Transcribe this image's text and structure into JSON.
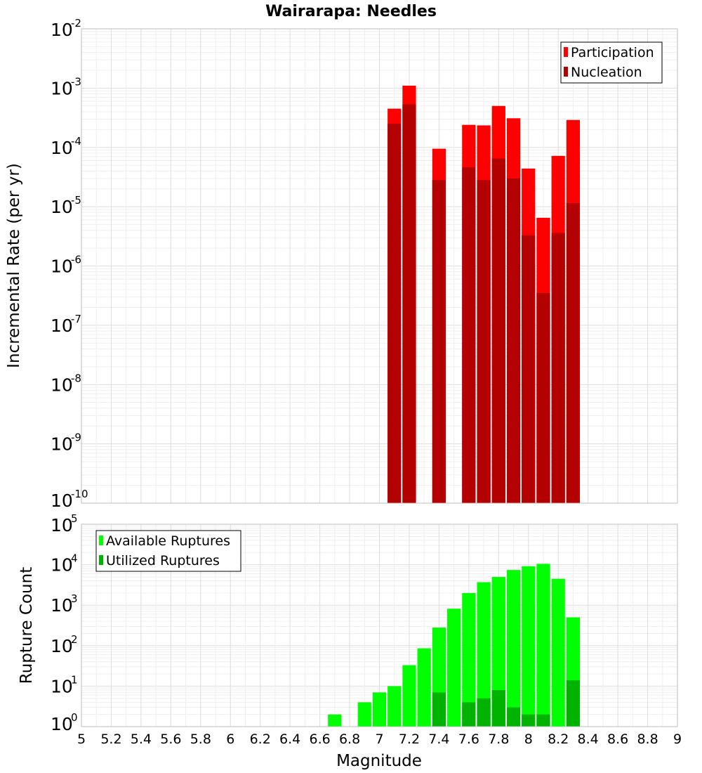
{
  "title": "Wairarapa: Needles",
  "x_axis_label": "Magnitude",
  "x_ticks": [
    "5",
    "5.2",
    "5.4",
    "5.6",
    "5.8",
    "6",
    "6.2",
    "6.4",
    "6.6",
    "6.8",
    "7",
    "7.2",
    "7.4",
    "7.6",
    "7.8",
    "8",
    "8.2",
    "8.4",
    "8.6",
    "8.8",
    "9"
  ],
  "chart_data": [
    {
      "type": "bar",
      "ylabel": "Incremental Rate (per yr)",
      "yscale": "log",
      "ylim_exponents": [
        -10,
        -2
      ],
      "xlim": [
        5,
        9
      ],
      "bar_width": 0.1,
      "legend_position": "top-right",
      "legend": [
        "Participation",
        "Nucleation"
      ],
      "series": [
        {
          "name": "Participation",
          "color": "#ff0000",
          "x": [
            7.1,
            7.2,
            7.4,
            7.6,
            7.7,
            7.8,
            7.9,
            8.0,
            8.1,
            8.2,
            8.3
          ],
          "values": [
            0.00045,
            0.0011,
            9.5e-05,
            0.00024,
            0.000235,
            0.0005,
            0.00031,
            4.4e-05,
            6.5e-06,
            7.2e-05,
            0.00029
          ]
        },
        {
          "name": "Nucleation",
          "color": "#b30000",
          "x": [
            7.1,
            7.2,
            7.4,
            7.6,
            7.7,
            7.8,
            7.9,
            8.0,
            8.1,
            8.2,
            8.3
          ],
          "values": [
            0.00025,
            0.00053,
            2.8e-05,
            4.6e-05,
            2.8e-05,
            6.5e-05,
            3e-05,
            3.3e-06,
            3.5e-07,
            3.6e-06,
            1.15e-05
          ]
        }
      ]
    },
    {
      "type": "bar",
      "ylabel": "Rupture Count",
      "yscale": "log",
      "ylim_exponents": [
        0,
        5
      ],
      "xlim": [
        5,
        9
      ],
      "bar_width": 0.1,
      "legend_position": "top-left",
      "legend": [
        "Available Ruptures",
        "Utilized Ruptures"
      ],
      "series": [
        {
          "name": "Available Ruptures",
          "color": "#00ff00",
          "x": [
            6.7,
            6.8,
            6.9,
            7.0,
            7.1,
            7.2,
            7.3,
            7.4,
            7.5,
            7.6,
            7.7,
            7.8,
            7.9,
            8.0,
            8.1,
            8.2,
            8.3,
            8.4
          ],
          "values": [
            2,
            1,
            4,
            7,
            10,
            33,
            86,
            280,
            820,
            2000,
            3700,
            5000,
            7400,
            9200,
            10500,
            4500,
            500,
            1
          ]
        },
        {
          "name": "Utilized Ruptures",
          "color": "#00b300",
          "x": [
            7.1,
            7.2,
            7.4,
            7.6,
            7.7,
            7.8,
            7.9,
            8.0,
            8.1,
            8.2,
            8.3
          ],
          "values": [
            1,
            1,
            7,
            4,
            5,
            8,
            3,
            2,
            2,
            1,
            14
          ]
        }
      ]
    }
  ]
}
